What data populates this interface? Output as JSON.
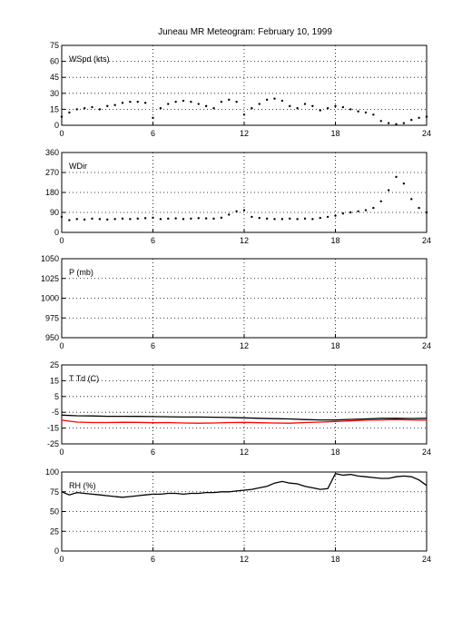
{
  "title": "Juneau MR Meteogram:  February 10, 1999",
  "chart_data": [
    {
      "type": "scatter",
      "panel_label": "WSpd (kts)",
      "x_ticks": [
        0,
        6,
        12,
        18,
        24
      ],
      "y_ticks": [
        0,
        15,
        30,
        45,
        60,
        75
      ],
      "xlim": [
        0,
        24
      ],
      "ylim": [
        0,
        75
      ],
      "grid": true,
      "series": [
        {
          "color": "#000000",
          "x": [
            0,
            0.5,
            1,
            1.5,
            2,
            2.5,
            3,
            3.5,
            4,
            4.5,
            5,
            5.5,
            6,
            6.5,
            7,
            7.5,
            8,
            8.5,
            9,
            9.5,
            10,
            10.5,
            11,
            11.5,
            12,
            12.5,
            13,
            13.5,
            14,
            14.5,
            15,
            15.5,
            16,
            16.5,
            17,
            17.5,
            18,
            18.5,
            19,
            19.5,
            20,
            20.5,
            21,
            21.5,
            22,
            22.5,
            23,
            23.5,
            24
          ],
          "y": [
            8,
            12,
            15,
            16,
            17,
            15,
            18,
            19,
            21,
            22,
            22,
            21,
            7,
            16,
            20,
            22,
            23,
            22,
            20,
            18,
            16,
            22,
            24,
            22,
            10,
            16,
            20,
            24,
            25,
            23,
            18,
            16,
            20,
            18,
            14,
            16,
            18,
            17,
            15,
            13,
            12,
            10,
            4,
            2,
            1,
            2,
            5,
            7,
            8
          ]
        }
      ]
    },
    {
      "type": "scatter",
      "panel_label": "WDir",
      "x_ticks": [
        0,
        6,
        12,
        18,
        24
      ],
      "y_ticks": [
        0,
        90,
        180,
        270,
        360
      ],
      "xlim": [
        0,
        24
      ],
      "ylim": [
        0,
        360
      ],
      "grid": true,
      "series": [
        {
          "color": "#000000",
          "x": [
            0,
            0.5,
            1,
            1.5,
            2,
            2.5,
            3,
            3.5,
            4,
            4.5,
            5,
            5.5,
            6,
            6.5,
            7,
            7.5,
            8,
            8.5,
            9,
            9.5,
            10,
            10.5,
            11,
            11.5,
            12,
            12.5,
            13,
            13.5,
            14,
            14.5,
            15,
            15.5,
            16,
            16.5,
            17,
            17.5,
            18,
            18.5,
            19,
            19.5,
            20,
            20.5,
            21,
            21.5,
            22,
            22.5,
            23,
            23.5,
            24
          ],
          "y": [
            70,
            55,
            60,
            58,
            62,
            60,
            58,
            60,
            62,
            60,
            62,
            64,
            66,
            60,
            62,
            63,
            60,
            62,
            64,
            63,
            62,
            66,
            80,
            95,
            100,
            70,
            65,
            62,
            60,
            60,
            62,
            60,
            62,
            60,
            65,
            70,
            75,
            85,
            90,
            95,
            100,
            110,
            140,
            190,
            250,
            220,
            150,
            110,
            90
          ]
        }
      ]
    },
    {
      "type": "scatter",
      "panel_label": "P (mb)",
      "x_ticks": [
        0,
        6,
        12,
        18,
        24
      ],
      "y_ticks": [
        950,
        975,
        1000,
        1025,
        1050
      ],
      "xlim": [
        0,
        24
      ],
      "ylim": [
        950,
        1050
      ],
      "grid": true,
      "series": []
    },
    {
      "type": "line",
      "panel_label": "T Td (C)",
      "x_ticks": [
        0,
        6,
        12,
        18,
        24
      ],
      "y_ticks": [
        -25,
        -15,
        -5,
        5,
        15,
        25
      ],
      "xlim": [
        0,
        24
      ],
      "ylim": [
        -25,
        25
      ],
      "grid": true,
      "series": [
        {
          "color": "#000000",
          "x": [
            0,
            1,
            2,
            3,
            4,
            5,
            6,
            7,
            8,
            9,
            10,
            11,
            12,
            13,
            14,
            15,
            16,
            17,
            18,
            19,
            20,
            21,
            22,
            23,
            24
          ],
          "y": [
            -6.8,
            -7.2,
            -7.3,
            -7.5,
            -7.5,
            -7.6,
            -7.7,
            -7.8,
            -8.0,
            -8.0,
            -8.1,
            -8.3,
            -8.5,
            -8.8,
            -9.0,
            -9.2,
            -9.6,
            -9.8,
            -9.8,
            -9.5,
            -9.2,
            -8.8,
            -8.8,
            -8.9,
            -8.8
          ]
        },
        {
          "color": "#ff0000",
          "x": [
            0,
            1,
            2,
            3,
            4,
            5,
            6,
            7,
            8,
            9,
            10,
            11,
            12,
            13,
            14,
            15,
            16,
            17,
            18,
            19,
            20,
            21,
            22,
            23,
            24
          ],
          "y": [
            -10.0,
            -11.2,
            -11.5,
            -11.5,
            -11.3,
            -11.4,
            -11.6,
            -11.5,
            -11.8,
            -11.9,
            -11.8,
            -11.5,
            -11.4,
            -11.6,
            -11.8,
            -11.9,
            -11.5,
            -11.2,
            -10.8,
            -10.4,
            -10.0,
            -9.8,
            -9.6,
            -9.8,
            -10.0
          ]
        }
      ]
    },
    {
      "type": "line",
      "panel_label": "RH (%)",
      "x_ticks": [
        0,
        6,
        12,
        18,
        24
      ],
      "y_ticks": [
        0,
        25,
        50,
        75,
        100
      ],
      "xlim": [
        0,
        24
      ],
      "ylim": [
        0,
        100
      ],
      "grid": true,
      "series": [
        {
          "color": "#000000",
          "x": [
            0,
            0.5,
            1,
            1.5,
            2,
            2.5,
            3,
            3.5,
            4,
            4.5,
            5,
            5.5,
            6,
            6.5,
            7,
            7.5,
            8,
            8.5,
            9,
            9.5,
            10,
            10.5,
            11,
            11.5,
            12,
            12.5,
            13,
            13.5,
            14,
            14.5,
            15,
            15.5,
            16,
            16.5,
            17,
            17.5,
            18,
            18.5,
            19,
            19.5,
            20,
            20.5,
            21,
            21.5,
            22,
            22.5,
            23,
            23.5,
            24
          ],
          "y": [
            75,
            71,
            74,
            73,
            72,
            71,
            70,
            69,
            68,
            69,
            70,
            71,
            72,
            72,
            73,
            73,
            72,
            73,
            73,
            74,
            74,
            75,
            75,
            76,
            77,
            78,
            80,
            82,
            86,
            88,
            86,
            85,
            82,
            80,
            78,
            79,
            98,
            96,
            97,
            95,
            94,
            93,
            92,
            92,
            94,
            95,
            94,
            90,
            83
          ]
        }
      ]
    }
  ]
}
